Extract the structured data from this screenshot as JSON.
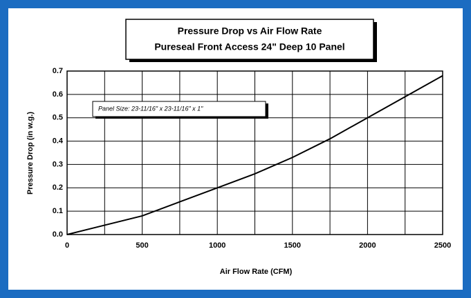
{
  "chart_data": {
    "type": "line",
    "title": "Pressure Drop vs Air Flow Rate",
    "subtitle": "Pureseal Front Access 24\" Deep 10 Panel",
    "annotation": "Panel Size: 23-11/16\" x 23-11/16\" x 1\"",
    "xlabel": "Air Flow Rate (CFM)",
    "ylabel": "Pressure Drop (in w.g.)",
    "x": [
      0,
      250,
      500,
      750,
      1000,
      1250,
      1500,
      1750,
      2000,
      2250,
      2500
    ],
    "values": [
      0,
      0.04,
      0.08,
      0.14,
      0.2,
      0.26,
      0.33,
      0.41,
      0.5,
      0.59,
      0.68
    ],
    "color": "#000000",
    "xlim": [
      0,
      2500
    ],
    "ylim": [
      0,
      0.7
    ],
    "xticks": [
      0,
      500,
      1000,
      1500,
      2000,
      2500
    ],
    "xminorticks": [
      250,
      750,
      1250,
      1750,
      2250
    ],
    "yticks": [
      {
        "value": 0,
        "label": "0.0"
      },
      0.1,
      0.2,
      0.3,
      0.4,
      0.5,
      0.6,
      0.7
    ],
    "grid": true
  }
}
